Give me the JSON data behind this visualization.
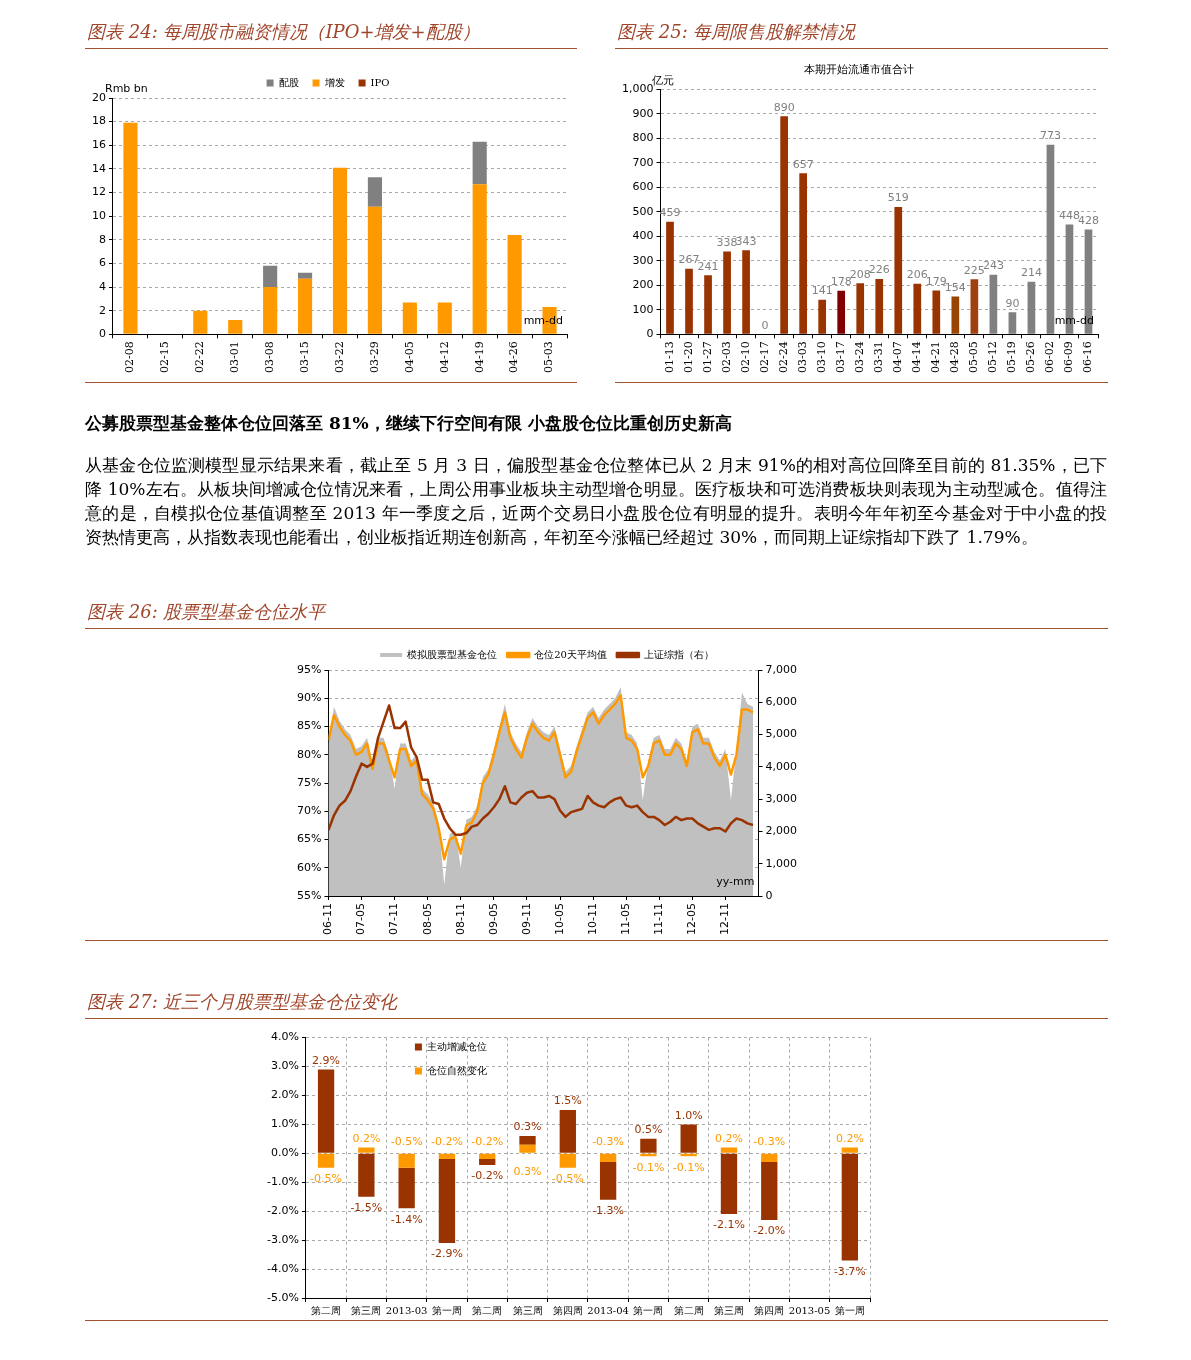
{
  "chart_data": [
    {
      "type": "bar",
      "title": "图表 24:  每周股市融资情况（IPO+增发+配股）",
      "ylabel": "Rmb bn",
      "xlabel": "mm-dd",
      "stacked": true,
      "legend": "top",
      "grid": "y",
      "categories": [
        "02-08",
        "02-15",
        "02-22",
        "03-01",
        "03-08",
        "03-15",
        "03-22",
        "03-29",
        "04-05",
        "04-12",
        "04-19",
        "04-26",
        "05-03"
      ],
      "series": [
        {
          "name": "IPO",
          "color": "#993300",
          "values": [
            0,
            0,
            0,
            0,
            0,
            0,
            0,
            0,
            0,
            0,
            0,
            0,
            0
          ]
        },
        {
          "name": "增发",
          "color": "#ff9900",
          "values": [
            17.9,
            0,
            2.0,
            1.2,
            4.0,
            4.7,
            14.1,
            10.8,
            2.7,
            2.7,
            12.7,
            8.4,
            2.3
          ]
        },
        {
          "name": "配股",
          "color": "#808080",
          "values": [
            0,
            0,
            0,
            0,
            1.8,
            0.5,
            0,
            2.5,
            0,
            0,
            3.6,
            0,
            0
          ]
        }
      ],
      "ylim": [
        0,
        20
      ],
      "yticks": [
        0,
        2,
        4,
        6,
        8,
        10,
        12,
        14,
        16,
        18,
        20
      ]
    },
    {
      "type": "bar",
      "title": "图表 25:  每周限售股解禁情况",
      "subtitle": "本期开始流通市值合计",
      "ylabel": "亿元",
      "xlabel": "mm-dd",
      "grid": "y",
      "data_labels": true,
      "categories": [
        "01-13",
        "01-20",
        "01-27",
        "02-03",
        "02-10",
        "02-17",
        "02-24",
        "03-03",
        "03-10",
        "03-17",
        "03-24",
        "03-31",
        "04-07",
        "04-14",
        "04-21",
        "04-28",
        "05-05",
        "05-12",
        "05-19",
        "05-26",
        "06-02",
        "06-09",
        "06-16"
      ],
      "series": [
        {
          "colors": [
            "#993300",
            "#993300",
            "#993300",
            "#993300",
            "#993300",
            "#993300",
            "#993300",
            "#993300",
            "#993300",
            "#800000",
            "#993300",
            "#993300",
            "#993300",
            "#993300",
            "#993300",
            "#994400",
            "#a0400f",
            "#808080",
            "#808080",
            "#808080",
            "#808080",
            "#808080",
            "#808080"
          ],
          "values": [
            459,
            267,
            241,
            338,
            343,
            0,
            890,
            657,
            141,
            178,
            208,
            226,
            519,
            206,
            179,
            154,
            225,
            243,
            90,
            214,
            773,
            448,
            428
          ]
        }
      ],
      "ylim": [
        0,
        1000
      ],
      "yticks": [
        0,
        100,
        200,
        300,
        400,
        500,
        600,
        700,
        800,
        900,
        {
          "value": 1000,
          "label": "1,000"
        }
      ]
    },
    {
      "type": "other",
      "title": "公募股票型基金整体仓位回落至 81%，继续下行空间有限  小盘股仓位比重创历史新高",
      "annotations": [
        "从基金仓位监测模型显示结果来看，截止至 5 月 3 日，偏股型基金仓位整体已从 2 月末 91%的相对高位回降至目前的 81.35%，已下降 10%左右。从板块间增减仓位情况来看，上周公用事业板块主动型增仓明显。医疗板块和可选消费板块则表现为主动型减仓。值得注意的是，自模拟仓位基值调整至 2013 年一季度之后，近两个交易日小盘股仓位有明显的提升。表明今年年初至今基金对于中小盘的投资热情更高，从指数表现也能看出，创业板指近期连创新高，年初至今涨幅已经超过 30%，而同期上证综指却下跌了 1.79%。"
      ]
    },
    {
      "type": "line",
      "title": "图表 26:  股票型基金仓位水平",
      "xlabel": "yy-mm",
      "legend": "top",
      "grid": "y",
      "x": [
        "2006-11",
        "2006-12",
        "2007-01",
        "2007-02",
        "2007-03",
        "2007-04",
        "2007-05",
        "2007-06",
        "2007-07",
        "2007-08",
        "2007-09",
        "2007-10",
        "2007-11",
        "2007-12",
        "2008-01",
        "2008-02",
        "2008-03",
        "2008-04",
        "2008-05",
        "2008-06",
        "2008-07",
        "2008-08",
        "2008-09",
        "2008-10",
        "2008-11",
        "2008-12",
        "2009-01",
        "2009-02",
        "2009-03",
        "2009-04",
        "2009-05",
        "2009-06",
        "2009-07",
        "2009-08",
        "2009-09",
        "2009-10",
        "2009-11",
        "2009-12",
        "2010-01",
        "2010-02",
        "2010-03",
        "2010-04",
        "2010-05",
        "2010-06",
        "2010-07",
        "2010-08",
        "2010-09",
        "2010-10",
        "2010-11",
        "2010-12",
        "2011-01",
        "2011-02",
        "2011-03",
        "2011-04",
        "2011-05",
        "2011-06",
        "2011-07",
        "2011-08",
        "2011-09",
        "2011-10",
        "2011-11",
        "2011-12",
        "2012-01",
        "2012-02",
        "2012-03",
        "2012-04",
        "2012-05",
        "2012-06",
        "2012-07",
        "2012-08",
        "2012-09",
        "2012-10",
        "2012-11",
        "2012-12",
        "2013-01",
        "2013-02",
        "2013-03",
        "2013-04"
      ],
      "series": [
        {
          "name": "模拟股票型基金仓位",
          "type": "area",
          "color": "#c0c0c0",
          "values": [
            82,
            88.5,
            86,
            84.5,
            83.5,
            81,
            81.5,
            83,
            78.5,
            83,
            83,
            80,
            74,
            82,
            82,
            79,
            80,
            74,
            73,
            71.5,
            68,
            57,
            66,
            66.5,
            60,
            68.5,
            69,
            71,
            76,
            77.5,
            81,
            85,
            89,
            84,
            82,
            80.5,
            84,
            86.5,
            85,
            84,
            83.5,
            85,
            81,
            77,
            78,
            81.5,
            84.5,
            87.5,
            88.5,
            86.5,
            88,
            89,
            90,
            92,
            84,
            83.5,
            82,
            72,
            79,
            83,
            83.5,
            81,
            81,
            83,
            82,
            79,
            85,
            85.5,
            83,
            83,
            80.5,
            79,
            81,
            72,
            81,
            91,
            89,
            88.5
          ]
        },
        {
          "name": "仓位20天平均值",
          "color": "#ff9900",
          "values": [
            82.5,
            87,
            85,
            83.5,
            82.5,
            80,
            80.5,
            82,
            77.5,
            82,
            82,
            79,
            76,
            81,
            81,
            78,
            79,
            73,
            72,
            70.5,
            67,
            61.5,
            65,
            65.5,
            62.5,
            67.5,
            68,
            70,
            75,
            76.5,
            80,
            84,
            87.5,
            83,
            81,
            79.5,
            83,
            85.5,
            84,
            83,
            82.5,
            84,
            80,
            76,
            77,
            80.5,
            83.5,
            86.5,
            87.5,
            85.5,
            87,
            88,
            89,
            90.5,
            83,
            82.5,
            81,
            76,
            78,
            82,
            82.5,
            80,
            80,
            82,
            81,
            78,
            84,
            84.5,
            82,
            82,
            79.5,
            78,
            80,
            76.5,
            80,
            88,
            88,
            87.5
          ]
        },
        {
          "name": "上证综指（右）",
          "color": "#993300",
          "axis": "y2",
          "values": [
            2040,
            2500,
            2800,
            2950,
            3250,
            3700,
            4100,
            4000,
            4100,
            4900,
            5400,
            5900,
            5200,
            5200,
            5400,
            4600,
            4300,
            3600,
            3600,
            2900,
            2850,
            2400,
            2100,
            1900,
            1900,
            1950,
            2150,
            2200,
            2400,
            2550,
            2750,
            3000,
            3400,
            2900,
            2850,
            3050,
            3200,
            3250,
            3050,
            3050,
            3100,
            3000,
            2650,
            2450,
            2600,
            2650,
            2700,
            3100,
            2900,
            2800,
            2750,
            2900,
            3000,
            3050,
            2800,
            2750,
            2800,
            2600,
            2450,
            2450,
            2350,
            2200,
            2300,
            2450,
            2350,
            2400,
            2400,
            2250,
            2150,
            2050,
            2100,
            2100,
            2000,
            2250,
            2400,
            2350,
            2250,
            2200
          ]
        }
      ],
      "xlim": [
        "2006-11",
        "2013-05"
      ],
      "xticks": [
        {
          "value": "2006-11",
          "label": "06-11"
        },
        {
          "value": "2007-05",
          "label": "07-05"
        },
        {
          "value": "2007-11",
          "label": "07-11"
        },
        {
          "value": "2008-05",
          "label": "08-05"
        },
        {
          "value": "2008-11",
          "label": "08-11"
        },
        {
          "value": "2009-05",
          "label": "09-05"
        },
        {
          "value": "2009-11",
          "label": "09-11"
        },
        {
          "value": "2010-05",
          "label": "10-05"
        },
        {
          "value": "2010-11",
          "label": "10-11"
        },
        {
          "value": "2011-05",
          "label": "11-05"
        },
        {
          "value": "2011-11",
          "label": "11-11"
        },
        {
          "value": "2012-05",
          "label": "12-05"
        },
        {
          "value": "2012-11",
          "label": "12-11"
        }
      ],
      "ylim": [
        55,
        95
      ],
      "yticks": [
        {
          "value": 55,
          "label": "55%"
        },
        {
          "value": 60,
          "label": "60%"
        },
        {
          "value": 65,
          "label": "65%"
        },
        {
          "value": 70,
          "label": "70%"
        },
        {
          "value": 75,
          "label": "75%"
        },
        {
          "value": 80,
          "label": "80%"
        },
        {
          "value": 85,
          "label": "85%"
        },
        {
          "value": 90,
          "label": "90%"
        },
        {
          "value": 95,
          "label": "95%"
        }
      ],
      "y2lim": [
        0,
        7000
      ],
      "y2ticks": [
        0,
        {
          "value": 1000,
          "label": "1,000"
        },
        {
          "value": 2000,
          "label": "2,000"
        },
        {
          "value": 3000,
          "label": "3,000"
        },
        {
          "value": 4000,
          "label": "4,000"
        },
        {
          "value": 5000,
          "label": "5,000"
        },
        {
          "value": 6000,
          "label": "6,000"
        },
        {
          "value": 7000,
          "label": "7,000"
        }
      ]
    },
    {
      "type": "bar",
      "title": "图表 27:  近三个月股票型基金仓位变化",
      "stacked": true,
      "legend": "top left",
      "grid": true,
      "categories": [
        "第二周",
        "第三周",
        "2013-03",
        "第一周",
        "第二周",
        "第三周",
        "第四周",
        "2013-04",
        "第一周",
        "第二周",
        "第三周",
        "第四周",
        "2013-05",
        "第一周"
      ],
      "series": [
        {
          "name": "仓位自然变化",
          "color": "#ff9900",
          "values": [
            -0.5,
            0.2,
            -0.5,
            -0.2,
            -0.2,
            0.3,
            -0.5,
            -0.3,
            -0.1,
            -0.1,
            0.2,
            -0.3,
            null,
            0.2
          ],
          "value_labels": [
            "-0.5%",
            "0.2%",
            "-0.5%",
            "-0.2%",
            "-0.2%",
            "0.3%",
            "-0.5%",
            "-0.3%",
            "-0.1%",
            "-0.1%",
            "0.2%",
            "-0.3%",
            null,
            "0.2%"
          ]
        },
        {
          "name": "主动增减仓位",
          "color": "#993300",
          "values": [
            2.9,
            -1.5,
            -1.4,
            -2.9,
            -0.2,
            0.3,
            1.5,
            -1.3,
            0.5,
            1.0,
            -2.1,
            -2.0,
            null,
            -3.7
          ],
          "value_labels": [
            "2.9%",
            "-1.5%",
            "-1.4%",
            "-2.9%",
            "-0.2%",
            "0.3%",
            "1.5%",
            "-1.3%",
            "0.5%",
            "1.0%",
            "-2.1%",
            "-2.0%",
            null,
            "-3.7%"
          ]
        }
      ],
      "ylim": [
        -5,
        4
      ],
      "yticks": [
        {
          "value": -5,
          "label": "-5.0%"
        },
        {
          "value": -4,
          "label": "-4.0%"
        },
        {
          "value": -3,
          "label": "-3.0%"
        },
        {
          "value": -2,
          "label": "-2.0%"
        },
        {
          "value": -1,
          "label": "-1.0%"
        },
        {
          "value": 0,
          "label": "0.0%"
        },
        {
          "value": 1,
          "label": "1.0%"
        },
        {
          "value": 2,
          "label": "2.0%"
        },
        {
          "value": 3,
          "label": "3.0%"
        },
        {
          "value": 4,
          "label": "4.0%"
        }
      ]
    }
  ]
}
